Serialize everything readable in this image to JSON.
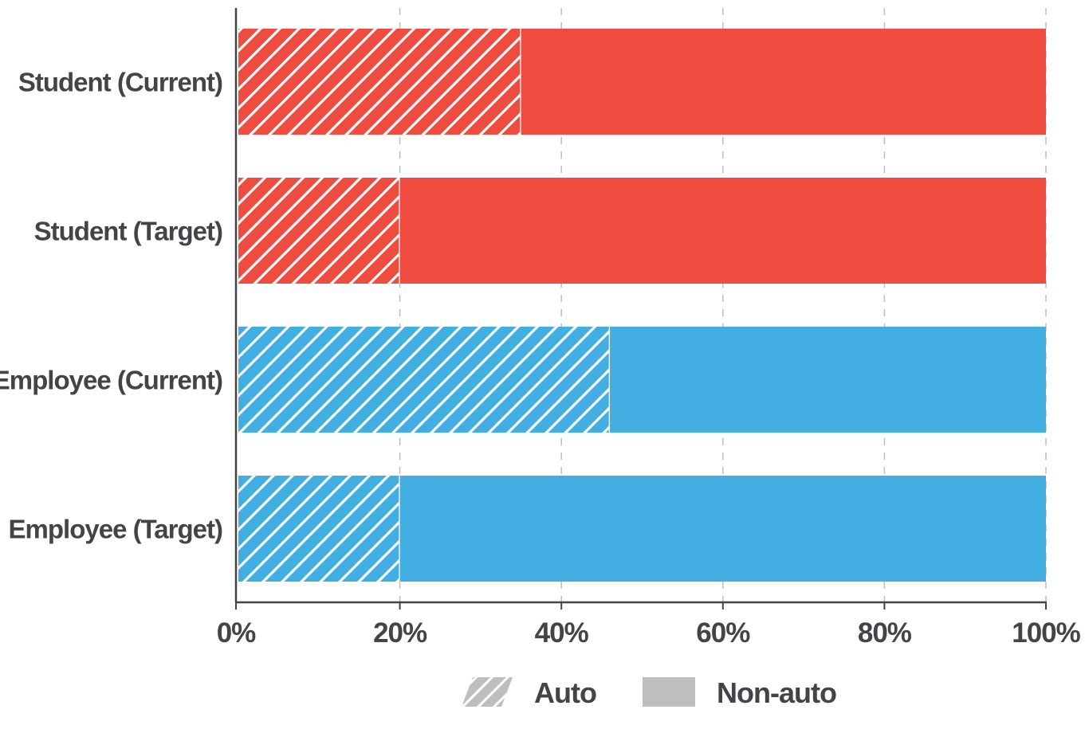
{
  "chart_data": {
    "type": "bar",
    "orientation": "horizontal",
    "stacked": true,
    "categories": [
      "Student (Current)",
      "Student (Target)",
      "Employee (Current)",
      "Employee (Target)"
    ],
    "series": [
      {
        "name": "Auto",
        "values": [
          35,
          20,
          46,
          20
        ],
        "pattern": "hatched"
      },
      {
        "name": "Non-auto",
        "values": [
          65,
          80,
          54,
          80
        ],
        "pattern": "solid"
      }
    ],
    "category_colors": [
      "#ef4b3f",
      "#ef4b3f",
      "#43aee2",
      "#43aee2"
    ],
    "xlim": [
      0,
      100
    ],
    "xticks": [
      0,
      20,
      40,
      60,
      80,
      100
    ],
    "xtick_labels": [
      "0%",
      "20%",
      "40%",
      "60%",
      "80%",
      "100%"
    ],
    "grid": "vertical dashed",
    "legend": {
      "position": "bottom",
      "items": [
        {
          "label": "Auto",
          "swatch": "hatched",
          "color": "#bdbec0"
        },
        {
          "label": "Non-auto",
          "swatch": "solid",
          "color": "#bdbec0"
        }
      ]
    },
    "axis_color": "#444448",
    "grid_color": "#bdbec0"
  }
}
